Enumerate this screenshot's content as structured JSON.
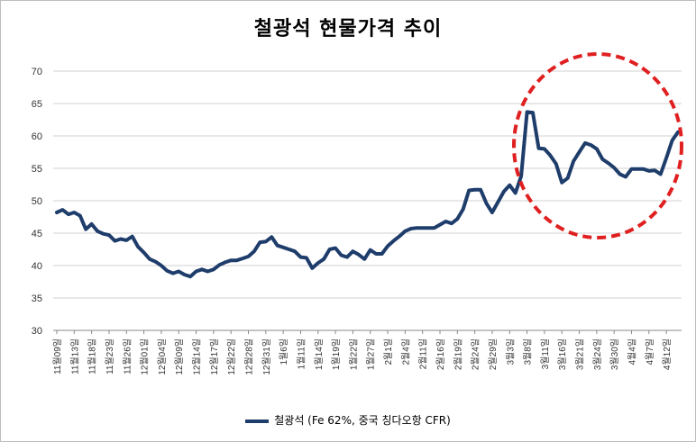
{
  "chart_data": {
    "type": "line",
    "title": "철광석 현물가격 추이",
    "ylim": [
      30,
      70
    ],
    "yticks": [
      30,
      35,
      40,
      45,
      50,
      55,
      60,
      65,
      70
    ],
    "grid": true,
    "legend_placement": "bottom",
    "annotation": "red-dashed-circle-around-recent-period",
    "colors": {
      "line": "#1f3d6b",
      "highlight": "#e02020",
      "grid": "#d0d0d0"
    },
    "series": [
      {
        "name": "철광석 (Fe 62%, 중국 칭다오항 CFR)",
        "values": [
          48.2,
          48.6,
          47.9,
          48.2,
          47.7,
          45.6,
          46.4,
          45.3,
          44.9,
          44.7,
          43.8,
          44.1,
          43.9,
          44.5,
          42.9,
          42.0,
          41.0,
          40.6,
          40.0,
          39.2,
          38.8,
          39.1,
          38.6,
          38.3,
          39.1,
          39.4,
          39.1,
          39.4,
          40.1,
          40.5,
          40.8,
          40.8,
          41.1,
          41.4,
          42.2,
          43.6,
          43.7,
          44.4,
          43.1,
          42.8,
          42.5,
          42.2,
          41.3,
          41.2,
          39.6,
          40.4,
          41.0,
          42.5,
          42.7,
          41.6,
          41.3,
          42.2,
          41.7,
          41.0,
          42.4,
          41.8,
          41.8,
          43.0,
          43.8,
          44.5,
          45.3,
          45.7,
          45.8,
          45.8,
          45.8,
          45.8,
          46.3,
          46.8,
          46.5,
          47.2,
          48.7,
          51.6,
          51.7,
          51.7,
          49.6,
          48.2,
          49.8,
          51.4,
          52.4,
          51.2,
          53.8,
          63.7,
          63.6,
          58.1,
          58.0,
          57.0,
          55.7,
          52.8,
          53.5,
          56.1,
          57.5,
          58.9,
          58.6,
          58.0,
          56.4,
          55.8,
          55.1,
          54.1,
          53.7,
          54.9,
          54.9,
          54.9,
          54.6,
          54.7,
          54.1,
          56.6,
          59.3,
          60.6
        ]
      }
    ],
    "x_labels": [
      "11월09일",
      "11월13일",
      "11월18일",
      "11월23일",
      "11월26일",
      "12월01일",
      "12월04일",
      "12월09일",
      "12월14일",
      "12월17일",
      "12월22일",
      "12월28일",
      "12월31일",
      "1월6일",
      "1월11일",
      "1월14일",
      "1월19일",
      "1월22일",
      "1월27일",
      "2월1일",
      "2월4일",
      "2월11일",
      "2월16일",
      "2월19일",
      "2월24일",
      "2월29일",
      "3월3일",
      "3월8일",
      "3월11일",
      "3월16일",
      "3월21일",
      "3월24일",
      "3월30일",
      "4월4일",
      "4월7일",
      "4월12일"
    ],
    "x_label_index": [
      0,
      3,
      6,
      9,
      12,
      15,
      18,
      21,
      24,
      27,
      30,
      33,
      36,
      39,
      42,
      45,
      48,
      51,
      54,
      57,
      60,
      63,
      66,
      69,
      72,
      75,
      78,
      81,
      84,
      87,
      90,
      93,
      96,
      99,
      102,
      105
    ]
  }
}
